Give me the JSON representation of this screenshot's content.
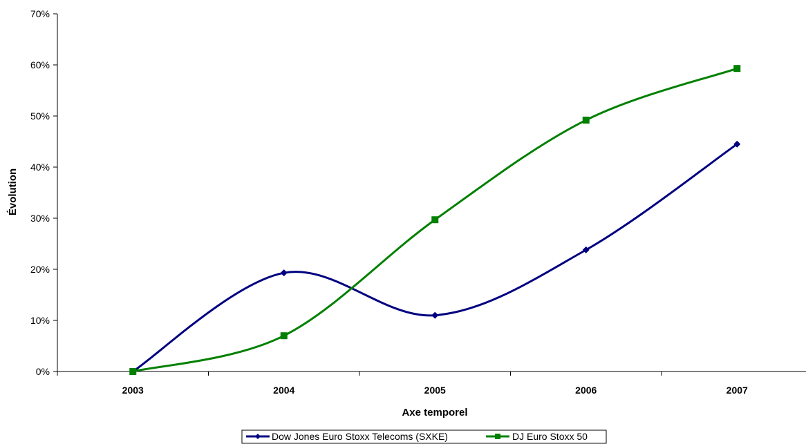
{
  "chart_data": {
    "type": "line",
    "title": "",
    "xlabel": "Axe temporel",
    "ylabel": "Évolution",
    "categories": [
      "2003",
      "2004",
      "2005",
      "2006",
      "2007"
    ],
    "yticks": [
      "0%",
      "10%",
      "20%",
      "30%",
      "40%",
      "50%",
      "60%",
      "70%"
    ],
    "ylim": [
      0,
      70
    ],
    "y_unit": "%",
    "grid": false,
    "smooth": true,
    "legend_position": "bottom",
    "series": [
      {
        "name": "Dow Jones Euro Stoxx Telecoms (SXKE)",
        "color": "#000080",
        "marker": "diamond",
        "values": [
          0,
          19.3,
          11.0,
          23.8,
          44.5
        ]
      },
      {
        "name": "DJ Euro Stoxx 50",
        "color": "#008000",
        "marker": "square",
        "values": [
          0,
          7.0,
          29.7,
          49.2,
          59.3
        ]
      }
    ]
  }
}
